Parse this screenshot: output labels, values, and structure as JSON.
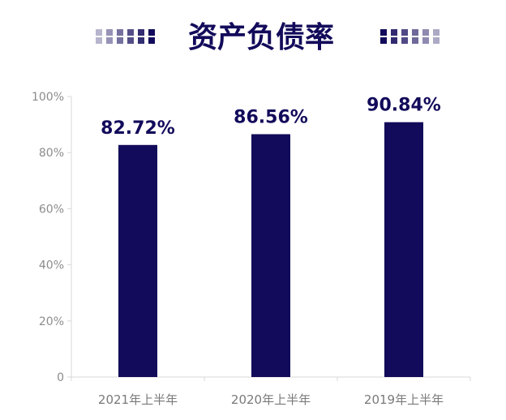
{
  "colors": {
    "bar": "#120a5a",
    "title": "#120a5a",
    "axis": "#d9d9d9",
    "tick_text": "#8c8c8c"
  },
  "chart_data": {
    "type": "bar",
    "title": "资产负债率",
    "categories": [
      "2021年上半年",
      "2020年上半年",
      "2019年上半年"
    ],
    "values": [
      82.72,
      86.56,
      90.84
    ],
    "data_labels": [
      "82.72%",
      "86.56%",
      "90.84%"
    ],
    "y_ticks": [
      "0",
      "20%",
      "40%",
      "60%",
      "80%",
      "100%"
    ],
    "ylim": [
      0,
      100
    ],
    "grid": false,
    "legend": "none"
  }
}
